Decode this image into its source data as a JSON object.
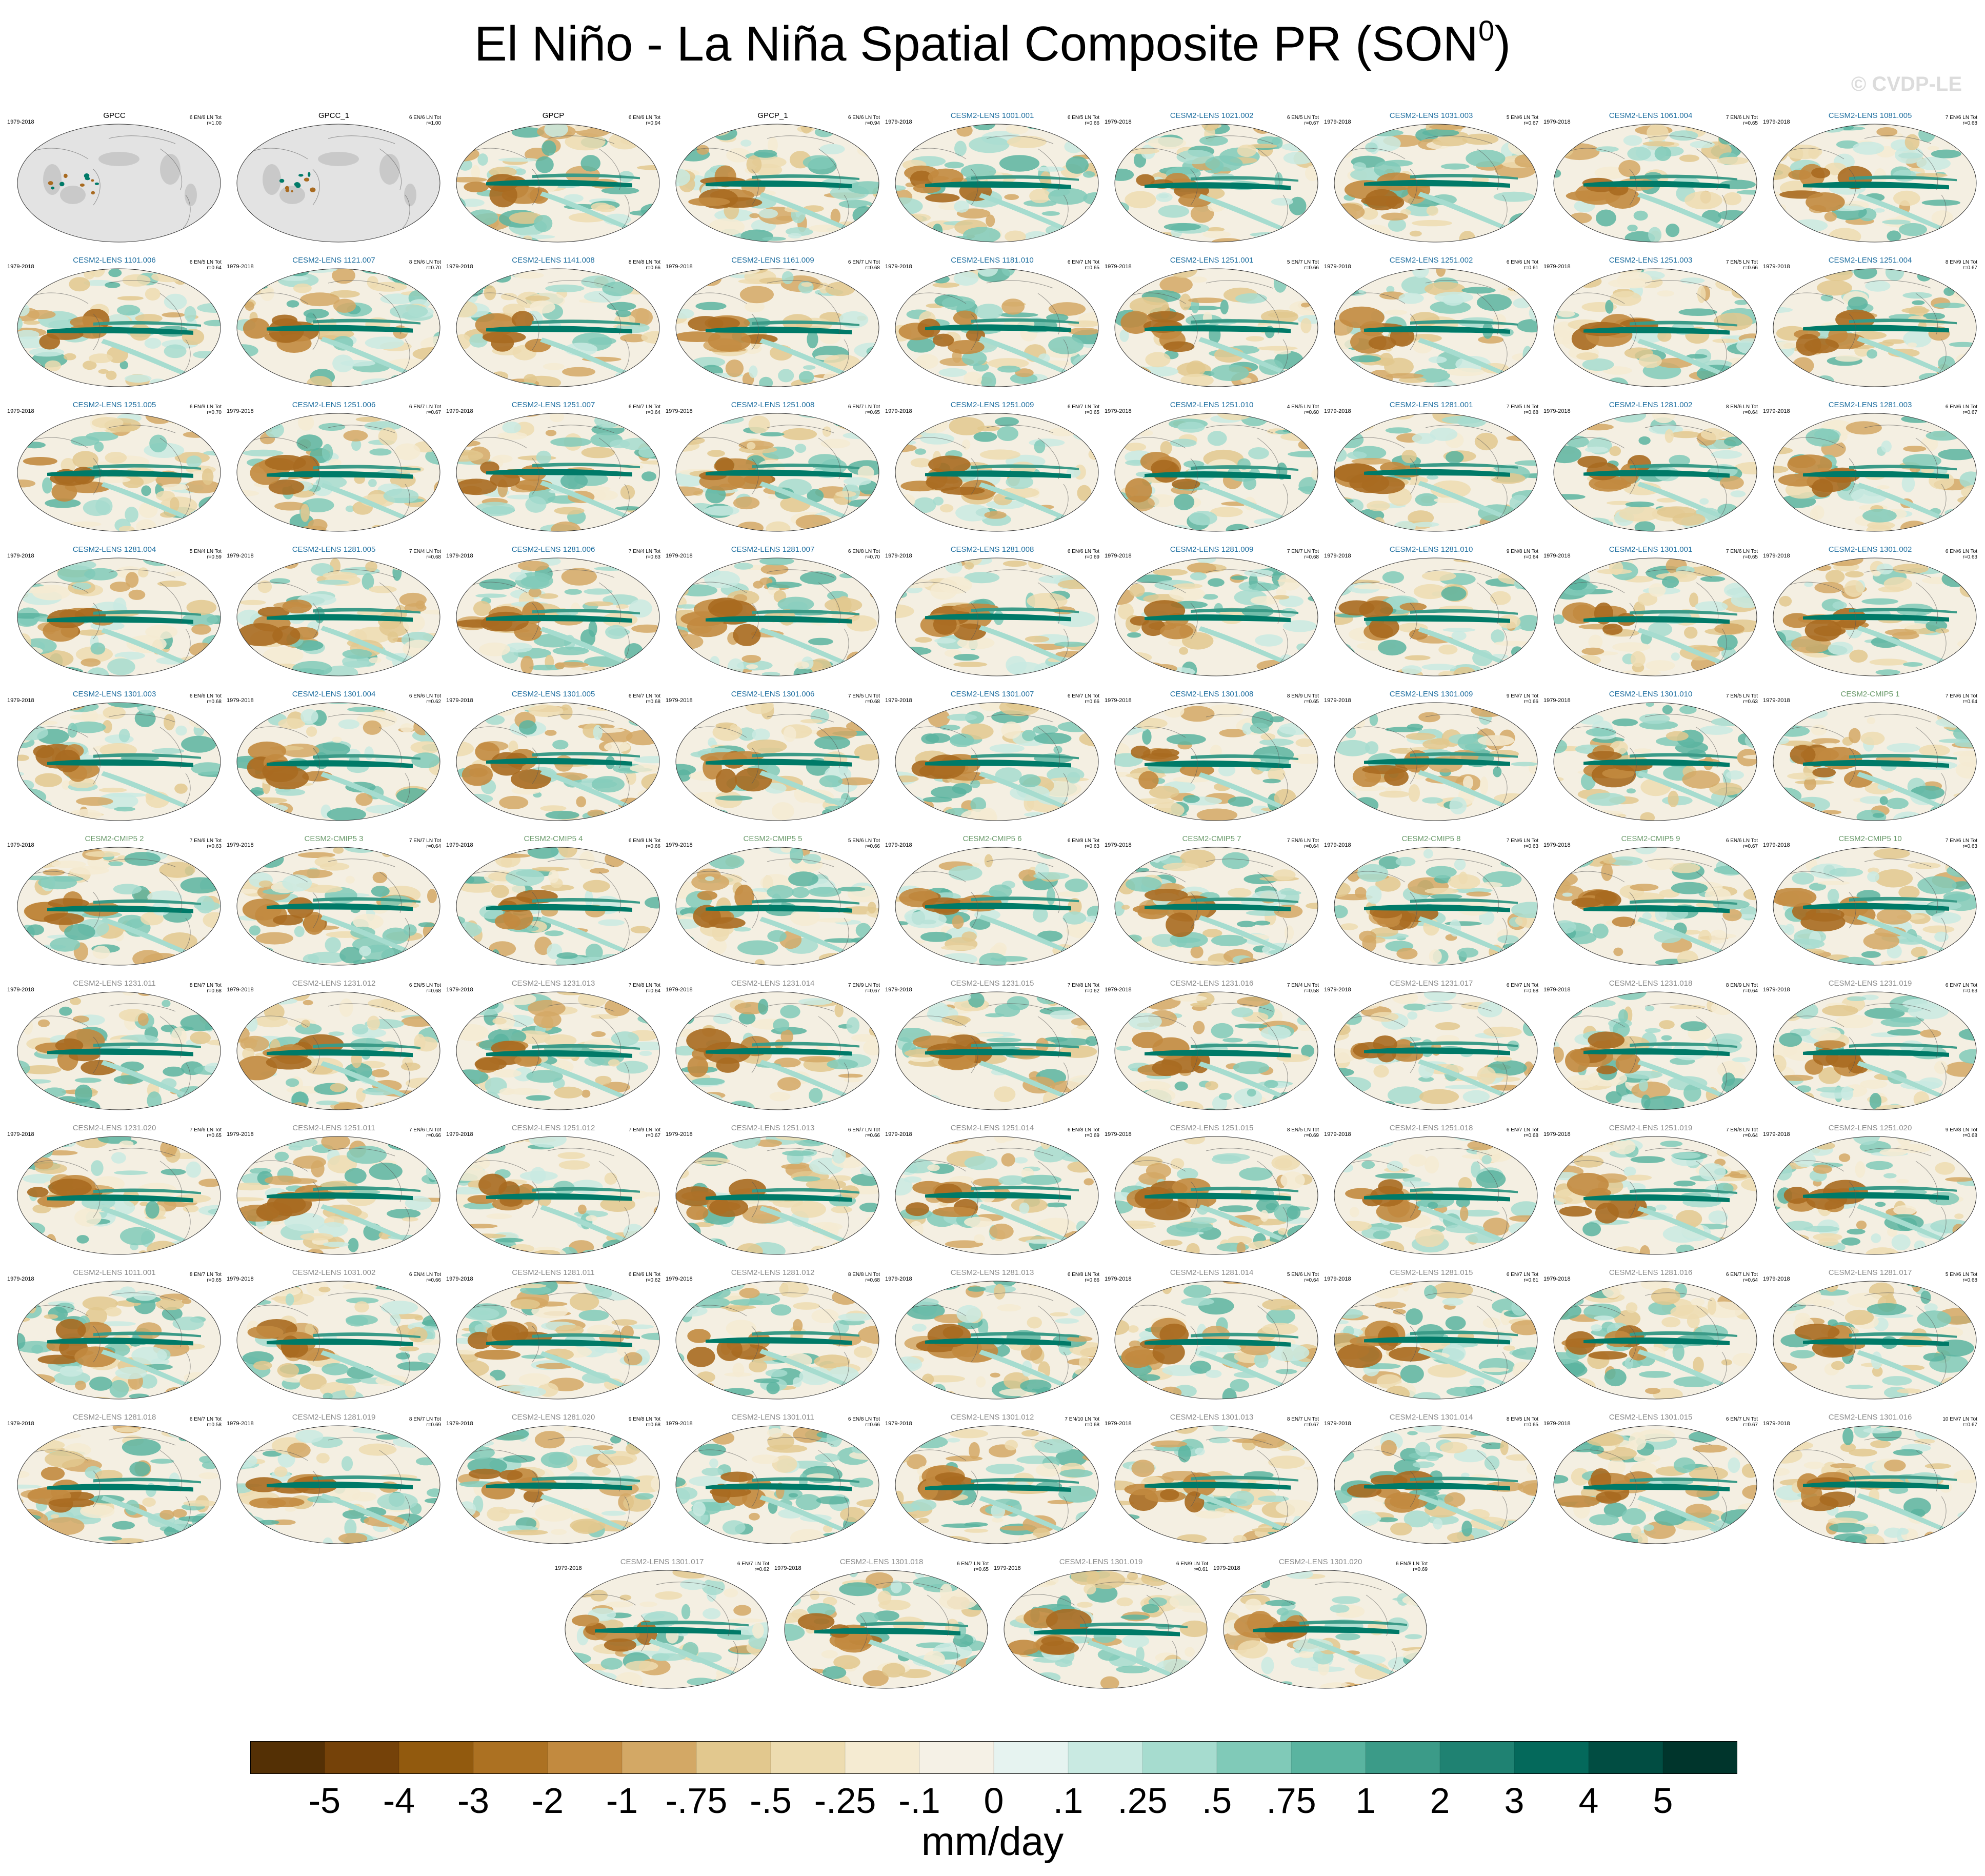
{
  "title": "El Niño - La Niña Spatial Composite PR (SON",
  "title_superscript": "0",
  "title_close": ")",
  "watermark": "© CVDP-LE",
  "colors": {
    "obs_title": "#000000",
    "lens_title": "#1f6fa0",
    "cmip_title": "#6a9a6a",
    "gray_title": "#8c8c8c",
    "land_gray": "#e3e3e3",
    "brown": "#a86a20",
    "teal": "#007a68"
  },
  "panels": [
    {
      "name": "GPCC",
      "period": "1979-2018",
      "stats": "6 EN/6 LN Tot",
      "r": "r=1.00",
      "group": "obs",
      "style": "land"
    },
    {
      "name": "GPCC_1",
      "period": "",
      "stats": "6 EN/6 LN Tot",
      "r": "r=1.00",
      "group": "obs",
      "style": "land"
    },
    {
      "name": "GPCP",
      "period": "",
      "stats": "6 EN/6 LN Tot",
      "r": "r=0.94",
      "group": "obs",
      "style": "full"
    },
    {
      "name": "GPCP_1",
      "period": "",
      "stats": "6 EN/6 LN Tot",
      "r": "r=0.94",
      "group": "obs",
      "style": "full"
    },
    {
      "name": "CESM2-LENS 1001.001",
      "period": "1979-2018",
      "stats": "6 EN/5 LN Tot",
      "r": "r=0.66",
      "group": "lens",
      "style": "full"
    },
    {
      "name": "CESM2-LENS 1021.002",
      "period": "1979-2018",
      "stats": "6 EN/5 LN Tot",
      "r": "r=0.67",
      "group": "lens",
      "style": "full"
    },
    {
      "name": "CESM2-LENS 1031.003",
      "period": "1979-2018",
      "stats": "5 EN/6 LN Tot",
      "r": "r=0.67",
      "group": "lens",
      "style": "full"
    },
    {
      "name": "CESM2-LENS 1061.004",
      "period": "1979-2018",
      "stats": "7 EN/6 LN Tot",
      "r": "r=0.65",
      "group": "lens",
      "style": "full"
    },
    {
      "name": "CESM2-LENS 1081.005",
      "period": "1979-2018",
      "stats": "7 EN/6 LN Tot",
      "r": "r=0.68",
      "group": "lens",
      "style": "full"
    },
    {
      "name": "CESM2-LENS 1101.006",
      "period": "1979-2018",
      "stats": "6 EN/5 LN Tot",
      "r": "r=0.64",
      "group": "lens",
      "style": "full"
    },
    {
      "name": "CESM2-LENS 1121.007",
      "period": "1979-2018",
      "stats": "8 EN/6 LN Tot",
      "r": "r=0.70",
      "group": "lens",
      "style": "full"
    },
    {
      "name": "CESM2-LENS 1141.008",
      "period": "1979-2018",
      "stats": "8 EN/8 LN Tot",
      "r": "r=0.66",
      "group": "lens",
      "style": "full"
    },
    {
      "name": "CESM2-LENS 1161.009",
      "period": "1979-2018",
      "stats": "6 EN/7 LN Tot",
      "r": "r=0.68",
      "group": "lens",
      "style": "full"
    },
    {
      "name": "CESM2-LENS 1181.010",
      "period": "1979-2018",
      "stats": "6 EN/7 LN Tot",
      "r": "r=0.65",
      "group": "lens",
      "style": "full"
    },
    {
      "name": "CESM2-LENS 1251.001",
      "period": "1979-2018",
      "stats": "5 EN/7 LN Tot",
      "r": "r=0.66",
      "group": "lens",
      "style": "full"
    },
    {
      "name": "CESM2-LENS 1251.002",
      "period": "1979-2018",
      "stats": "6 EN/6 LN Tot",
      "r": "r=0.61",
      "group": "lens",
      "style": "full"
    },
    {
      "name": "CESM2-LENS 1251.003",
      "period": "1979-2018",
      "stats": "7 EN/5 LN Tot",
      "r": "r=0.66",
      "group": "lens",
      "style": "full"
    },
    {
      "name": "CESM2-LENS 1251.004",
      "period": "1979-2018",
      "stats": "8 EN/9 LN Tot",
      "r": "r=0.67",
      "group": "lens",
      "style": "full"
    },
    {
      "name": "CESM2-LENS 1251.005",
      "period": "1979-2018",
      "stats": "6 EN/9 LN Tot",
      "r": "r=0.70",
      "group": "lens",
      "style": "full"
    },
    {
      "name": "CESM2-LENS 1251.006",
      "period": "1979-2018",
      "stats": "6 EN/7 LN Tot",
      "r": "r=0.67",
      "group": "lens",
      "style": "full"
    },
    {
      "name": "CESM2-LENS 1251.007",
      "period": "1979-2018",
      "stats": "6 EN/7 LN Tot",
      "r": "r=0.64",
      "group": "lens",
      "style": "full"
    },
    {
      "name": "CESM2-LENS 1251.008",
      "period": "1979-2018",
      "stats": "6 EN/7 LN Tot",
      "r": "r=0.65",
      "group": "lens",
      "style": "full"
    },
    {
      "name": "CESM2-LENS 1251.009",
      "period": "1979-2018",
      "stats": "6 EN/7 LN Tot",
      "r": "r=0.65",
      "group": "lens",
      "style": "full"
    },
    {
      "name": "CESM2-LENS 1251.010",
      "period": "1979-2018",
      "stats": "4 EN/5 LN Tot",
      "r": "r=0.60",
      "group": "lens",
      "style": "full"
    },
    {
      "name": "CESM2-LENS 1281.001",
      "period": "1979-2018",
      "stats": "7 EN/5 LN Tot",
      "r": "r=0.68",
      "group": "lens",
      "style": "full"
    },
    {
      "name": "CESM2-LENS 1281.002",
      "period": "1979-2018",
      "stats": "8 EN/6 LN Tot",
      "r": "r=0.64",
      "group": "lens",
      "style": "full"
    },
    {
      "name": "CESM2-LENS 1281.003",
      "period": "1979-2018",
      "stats": "6 EN/6 LN Tot",
      "r": "r=0.67",
      "group": "lens",
      "style": "full"
    },
    {
      "name": "CESM2-LENS 1281.004",
      "period": "1979-2018",
      "stats": "5 EN/4 LN Tot",
      "r": "r=0.59",
      "group": "lens",
      "style": "full"
    },
    {
      "name": "CESM2-LENS 1281.005",
      "period": "1979-2018",
      "stats": "7 EN/4 LN Tot",
      "r": "r=0.68",
      "group": "lens",
      "style": "full"
    },
    {
      "name": "CESM2-LENS 1281.006",
      "period": "1979-2018",
      "stats": "7 EN/4 LN Tot",
      "r": "r=0.63",
      "group": "lens",
      "style": "full"
    },
    {
      "name": "CESM2-LENS 1281.007",
      "period": "1979-2018",
      "stats": "6 EN/8 LN Tot",
      "r": "r=0.70",
      "group": "lens",
      "style": "full"
    },
    {
      "name": "CESM2-LENS 1281.008",
      "period": "1979-2018",
      "stats": "6 EN/6 LN Tot",
      "r": "r=0.69",
      "group": "lens",
      "style": "full"
    },
    {
      "name": "CESM2-LENS 1281.009",
      "period": "1979-2018",
      "stats": "7 EN/7 LN Tot",
      "r": "r=0.68",
      "group": "lens",
      "style": "full"
    },
    {
      "name": "CESM2-LENS 1281.010",
      "period": "1979-2018",
      "stats": "9 EN/8 LN Tot",
      "r": "r=0.64",
      "group": "lens",
      "style": "full"
    },
    {
      "name": "CESM2-LENS 1301.001",
      "period": "1979-2018",
      "stats": "7 EN/6 LN Tot",
      "r": "r=0.65",
      "group": "lens",
      "style": "full"
    },
    {
      "name": "CESM2-LENS 1301.002",
      "period": "1979-2018",
      "stats": "6 EN/6 LN Tot",
      "r": "r=0.63",
      "group": "lens",
      "style": "full"
    },
    {
      "name": "CESM2-LENS 1301.003",
      "period": "1979-2018",
      "stats": "6 EN/6 LN Tot",
      "r": "r=0.68",
      "group": "lens",
      "style": "full"
    },
    {
      "name": "CESM2-LENS 1301.004",
      "period": "1979-2018",
      "stats": "6 EN/6 LN Tot",
      "r": "r=0.62",
      "group": "lens",
      "style": "full"
    },
    {
      "name": "CESM2-LENS 1301.005",
      "period": "1979-2018",
      "stats": "6 EN/7 LN Tot",
      "r": "r=0.68",
      "group": "lens",
      "style": "full"
    },
    {
      "name": "CESM2-LENS 1301.006",
      "period": "1979-2018",
      "stats": "7 EN/5 LN Tot",
      "r": "r=0.68",
      "group": "lens",
      "style": "full"
    },
    {
      "name": "CESM2-LENS 1301.007",
      "period": "1979-2018",
      "stats": "6 EN/7 LN Tot",
      "r": "r=0.66",
      "group": "lens",
      "style": "full"
    },
    {
      "name": "CESM2-LENS 1301.008",
      "period": "1979-2018",
      "stats": "8 EN/9 LN Tot",
      "r": "r=0.65",
      "group": "lens",
      "style": "full"
    },
    {
      "name": "CESM2-LENS 1301.009",
      "period": "1979-2018",
      "stats": "9 EN/7 LN Tot",
      "r": "r=0.66",
      "group": "lens",
      "style": "full"
    },
    {
      "name": "CESM2-LENS 1301.010",
      "period": "1979-2018",
      "stats": "7 EN/5 LN Tot",
      "r": "r=0.63",
      "group": "lens",
      "style": "full"
    },
    {
      "name": "CESM2-CMIP5 1",
      "period": "1979-2018",
      "stats": "7 EN/6 LN Tot",
      "r": "r=0.64",
      "group": "cmip",
      "style": "full"
    },
    {
      "name": "CESM2-CMIP5 2",
      "period": "1979-2018",
      "stats": "7 EN/6 LN Tot",
      "r": "r=0.63",
      "group": "cmip",
      "style": "full"
    },
    {
      "name": "CESM2-CMIP5 3",
      "period": "1979-2018",
      "stats": "7 EN/7 LN Tot",
      "r": "r=0.64",
      "group": "cmip",
      "style": "full"
    },
    {
      "name": "CESM2-CMIP5 4",
      "period": "1979-2018",
      "stats": "6 EN/8 LN Tot",
      "r": "r=0.66",
      "group": "cmip",
      "style": "full"
    },
    {
      "name": "CESM2-CMIP5 5",
      "period": "1979-2018",
      "stats": "5 EN/6 LN Tot",
      "r": "r=0.66",
      "group": "cmip",
      "style": "full"
    },
    {
      "name": "CESM2-CMIP5 6",
      "period": "1979-2018",
      "stats": "6 EN/8 LN Tot",
      "r": "r=0.63",
      "group": "cmip",
      "style": "full"
    },
    {
      "name": "CESM2-CMIP5 7",
      "period": "1979-2018",
      "stats": "7 EN/6 LN Tot",
      "r": "r=0.64",
      "group": "cmip",
      "style": "full"
    },
    {
      "name": "CESM2-CMIP5 8",
      "period": "1979-2018",
      "stats": "7 EN/6 LN Tot",
      "r": "r=0.63",
      "group": "cmip",
      "style": "full"
    },
    {
      "name": "CESM2-CMIP5 9",
      "period": "1979-2018",
      "stats": "6 EN/6 LN Tot",
      "r": "r=0.67",
      "group": "cmip",
      "style": "full"
    },
    {
      "name": "CESM2-CMIP5 10",
      "period": "1979-2018",
      "stats": "7 EN/6 LN Tot",
      "r": "r=0.63",
      "group": "cmip",
      "style": "full"
    },
    {
      "name": "CESM2-LENS 1231.011",
      "period": "1979-2018",
      "stats": "8 EN/7 LN Tot",
      "r": "r=0.68",
      "group": "gray",
      "style": "full"
    },
    {
      "name": "CESM2-LENS 1231.012",
      "period": "1979-2018",
      "stats": "6 EN/5 LN Tot",
      "r": "r=0.68",
      "group": "gray",
      "style": "full"
    },
    {
      "name": "CESM2-LENS 1231.013",
      "period": "1979-2018",
      "stats": "7 EN/8 LN Tot",
      "r": "r=0.64",
      "group": "gray",
      "style": "full"
    },
    {
      "name": "CESM2-LENS 1231.014",
      "period": "1979-2018",
      "stats": "7 EN/9 LN Tot",
      "r": "r=0.67",
      "group": "gray",
      "style": "full"
    },
    {
      "name": "CESM2-LENS 1231.015",
      "period": "1979-2018",
      "stats": "7 EN/8 LN Tot",
      "r": "r=0.62",
      "group": "gray",
      "style": "full"
    },
    {
      "name": "CESM2-LENS 1231.016",
      "period": "1979-2018",
      "stats": "7 EN/4 LN Tot",
      "r": "r=0.58",
      "group": "gray",
      "style": "full"
    },
    {
      "name": "CESM2-LENS 1231.017",
      "period": "1979-2018",
      "stats": "6 EN/7 LN Tot",
      "r": "r=0.68",
      "group": "gray",
      "style": "full"
    },
    {
      "name": "CESM2-LENS 1231.018",
      "period": "1979-2018",
      "stats": "8 EN/9 LN Tot",
      "r": "r=0.64",
      "group": "gray",
      "style": "full"
    },
    {
      "name": "CESM2-LENS 1231.019",
      "period": "1979-2018",
      "stats": "6 EN/7 LN Tot",
      "r": "r=0.63",
      "group": "gray",
      "style": "full"
    },
    {
      "name": "CESM2-LENS 1231.020",
      "period": "1979-2018",
      "stats": "7 EN/6 LN Tot",
      "r": "r=0.65",
      "group": "gray",
      "style": "full"
    },
    {
      "name": "CESM2-LENS 1251.011",
      "period": "1979-2018",
      "stats": "7 EN/6 LN Tot",
      "r": "r=0.66",
      "group": "gray",
      "style": "full"
    },
    {
      "name": "CESM2-LENS 1251.012",
      "period": "1979-2018",
      "stats": "7 EN/9 LN Tot",
      "r": "r=0.67",
      "group": "gray",
      "style": "full"
    },
    {
      "name": "CESM2-LENS 1251.013",
      "period": "1979-2018",
      "stats": "6 EN/7 LN Tot",
      "r": "r=0.66",
      "group": "gray",
      "style": "full"
    },
    {
      "name": "CESM2-LENS 1251.014",
      "period": "1979-2018",
      "stats": "6 EN/8 LN Tot",
      "r": "r=0.69",
      "group": "gray",
      "style": "full"
    },
    {
      "name": "CESM2-LENS 1251.015",
      "period": "1979-2018",
      "stats": "8 EN/5 LN Tot",
      "r": "r=0.69",
      "group": "gray",
      "style": "full"
    },
    {
      "name": "CESM2-LENS 1251.018",
      "period": "1979-2018",
      "stats": "6 EN/7 LN Tot",
      "r": "r=0.68",
      "group": "gray",
      "style": "full"
    },
    {
      "name": "CESM2-LENS 1251.019",
      "period": "1979-2018",
      "stats": "7 EN/8 LN Tot",
      "r": "r=0.64",
      "group": "gray",
      "style": "full"
    },
    {
      "name": "CESM2-LENS 1251.020",
      "period": "1979-2018",
      "stats": "9 EN/8 LN Tot",
      "r": "r=0.68",
      "group": "gray",
      "style": "full"
    },
    {
      "name": "CESM2-LENS 1011.001",
      "period": "1979-2018",
      "stats": "8 EN/7 LN Tot",
      "r": "r=0.65",
      "group": "gray",
      "style": "full"
    },
    {
      "name": "CESM2-LENS 1031.002",
      "period": "1979-2018",
      "stats": "6 EN/4 LN Tot",
      "r": "r=0.66",
      "group": "gray",
      "style": "full"
    },
    {
      "name": "CESM2-LENS 1281.011",
      "period": "1979-2018",
      "stats": "6 EN/6 LN Tot",
      "r": "r=0.62",
      "group": "gray",
      "style": "full"
    },
    {
      "name": "CESM2-LENS 1281.012",
      "period": "1979-2018",
      "stats": "8 EN/8 LN Tot",
      "r": "r=0.68",
      "group": "gray",
      "style": "full"
    },
    {
      "name": "CESM2-LENS 1281.013",
      "period": "1979-2018",
      "stats": "6 EN/8 LN Tot",
      "r": "r=0.66",
      "group": "gray",
      "style": "full"
    },
    {
      "name": "CESM2-LENS 1281.014",
      "period": "1979-2018",
      "stats": "5 EN/6 LN Tot",
      "r": "r=0.64",
      "group": "gray",
      "style": "full"
    },
    {
      "name": "CESM2-LENS 1281.015",
      "period": "1979-2018",
      "stats": "6 EN/7 LN Tot",
      "r": "r=0.61",
      "group": "gray",
      "style": "full"
    },
    {
      "name": "CESM2-LENS 1281.016",
      "period": "1979-2018",
      "stats": "6 EN/7 LN Tot",
      "r": "r=0.64",
      "group": "gray",
      "style": "full"
    },
    {
      "name": "CESM2-LENS 1281.017",
      "period": "1979-2018",
      "stats": "5 EN/6 LN Tot",
      "r": "r=0.68",
      "group": "gray",
      "style": "full"
    },
    {
      "name": "CESM2-LENS 1281.018",
      "period": "1979-2018",
      "stats": "6 EN/7 LN Tot",
      "r": "r=0.58",
      "group": "gray",
      "style": "full"
    },
    {
      "name": "CESM2-LENS 1281.019",
      "period": "1979-2018",
      "stats": "8 EN/7 LN Tot",
      "r": "r=0.69",
      "group": "gray",
      "style": "full"
    },
    {
      "name": "CESM2-LENS 1281.020",
      "period": "1979-2018",
      "stats": "9 EN/8 LN Tot",
      "r": "r=0.68",
      "group": "gray",
      "style": "full"
    },
    {
      "name": "CESM2-LENS 1301.011",
      "period": "1979-2018",
      "stats": "6 EN/8 LN Tot",
      "r": "r=0.66",
      "group": "gray",
      "style": "full"
    },
    {
      "name": "CESM2-LENS 1301.012",
      "period": "1979-2018",
      "stats": "7 EN/10 LN Tot",
      "r": "r=0.68",
      "group": "gray",
      "style": "full"
    },
    {
      "name": "CESM2-LENS 1301.013",
      "period": "1979-2018",
      "stats": "8 EN/7 LN Tot",
      "r": "r=0.67",
      "group": "gray",
      "style": "full"
    },
    {
      "name": "CESM2-LENS 1301.014",
      "period": "1979-2018",
      "stats": "8 EN/5 LN Tot",
      "r": "r=0.65",
      "group": "gray",
      "style": "full"
    },
    {
      "name": "CESM2-LENS 1301.015",
      "period": "1979-2018",
      "stats": "6 EN/7 LN Tot",
      "r": "r=0.67",
      "group": "gray",
      "style": "full"
    },
    {
      "name": "CESM2-LENS 1301.016",
      "period": "1979-2018",
      "stats": "10 EN/7 LN Tot",
      "r": "r=0.67",
      "group": "gray",
      "style": "full"
    },
    {
      "name": "CESM2-LENS 1301.017",
      "period": "1979-2018",
      "stats": "6 EN/7 LN Tot",
      "r": "r=0.62",
      "group": "gray",
      "style": "full"
    },
    {
      "name": "CESM2-LENS 1301.018",
      "period": "1979-2018",
      "stats": "6 EN/7 LN Tot",
      "r": "r=0.65",
      "group": "gray",
      "style": "full"
    },
    {
      "name": "CESM2-LENS 1301.019",
      "period": "1979-2018",
      "stats": "6 EN/9 LN Tot",
      "r": "r=0.61",
      "group": "gray",
      "style": "full"
    },
    {
      "name": "CESM2-LENS 1301.020",
      "period": "1979-2018",
      "stats": "6 EN/8 LN Tot",
      "r": "r=0.69",
      "group": "gray",
      "style": "full"
    }
  ],
  "colorbar": {
    "labels": [
      "-5",
      "-4",
      "-3",
      "-2",
      "-1",
      "-.75",
      "-.5",
      "-.25",
      "-.1",
      "0",
      ".1",
      ".25",
      ".5",
      ".75",
      "1",
      "2",
      "3",
      "4",
      "5"
    ],
    "colors": [
      "#543005",
      "#754209",
      "#925a0e",
      "#ac7122",
      "#c28a3f",
      "#d3a865",
      "#e2c88e",
      "#eddcb0",
      "#f5ebd2",
      "#f5f1e6",
      "#e6f3f0",
      "#c9eae2",
      "#a6dccf",
      "#80cab8",
      "#5ab4a0",
      "#3b9b88",
      "#1f8272",
      "#04695b",
      "#014d42",
      "#00352c"
    ],
    "units": "mm/day"
  }
}
